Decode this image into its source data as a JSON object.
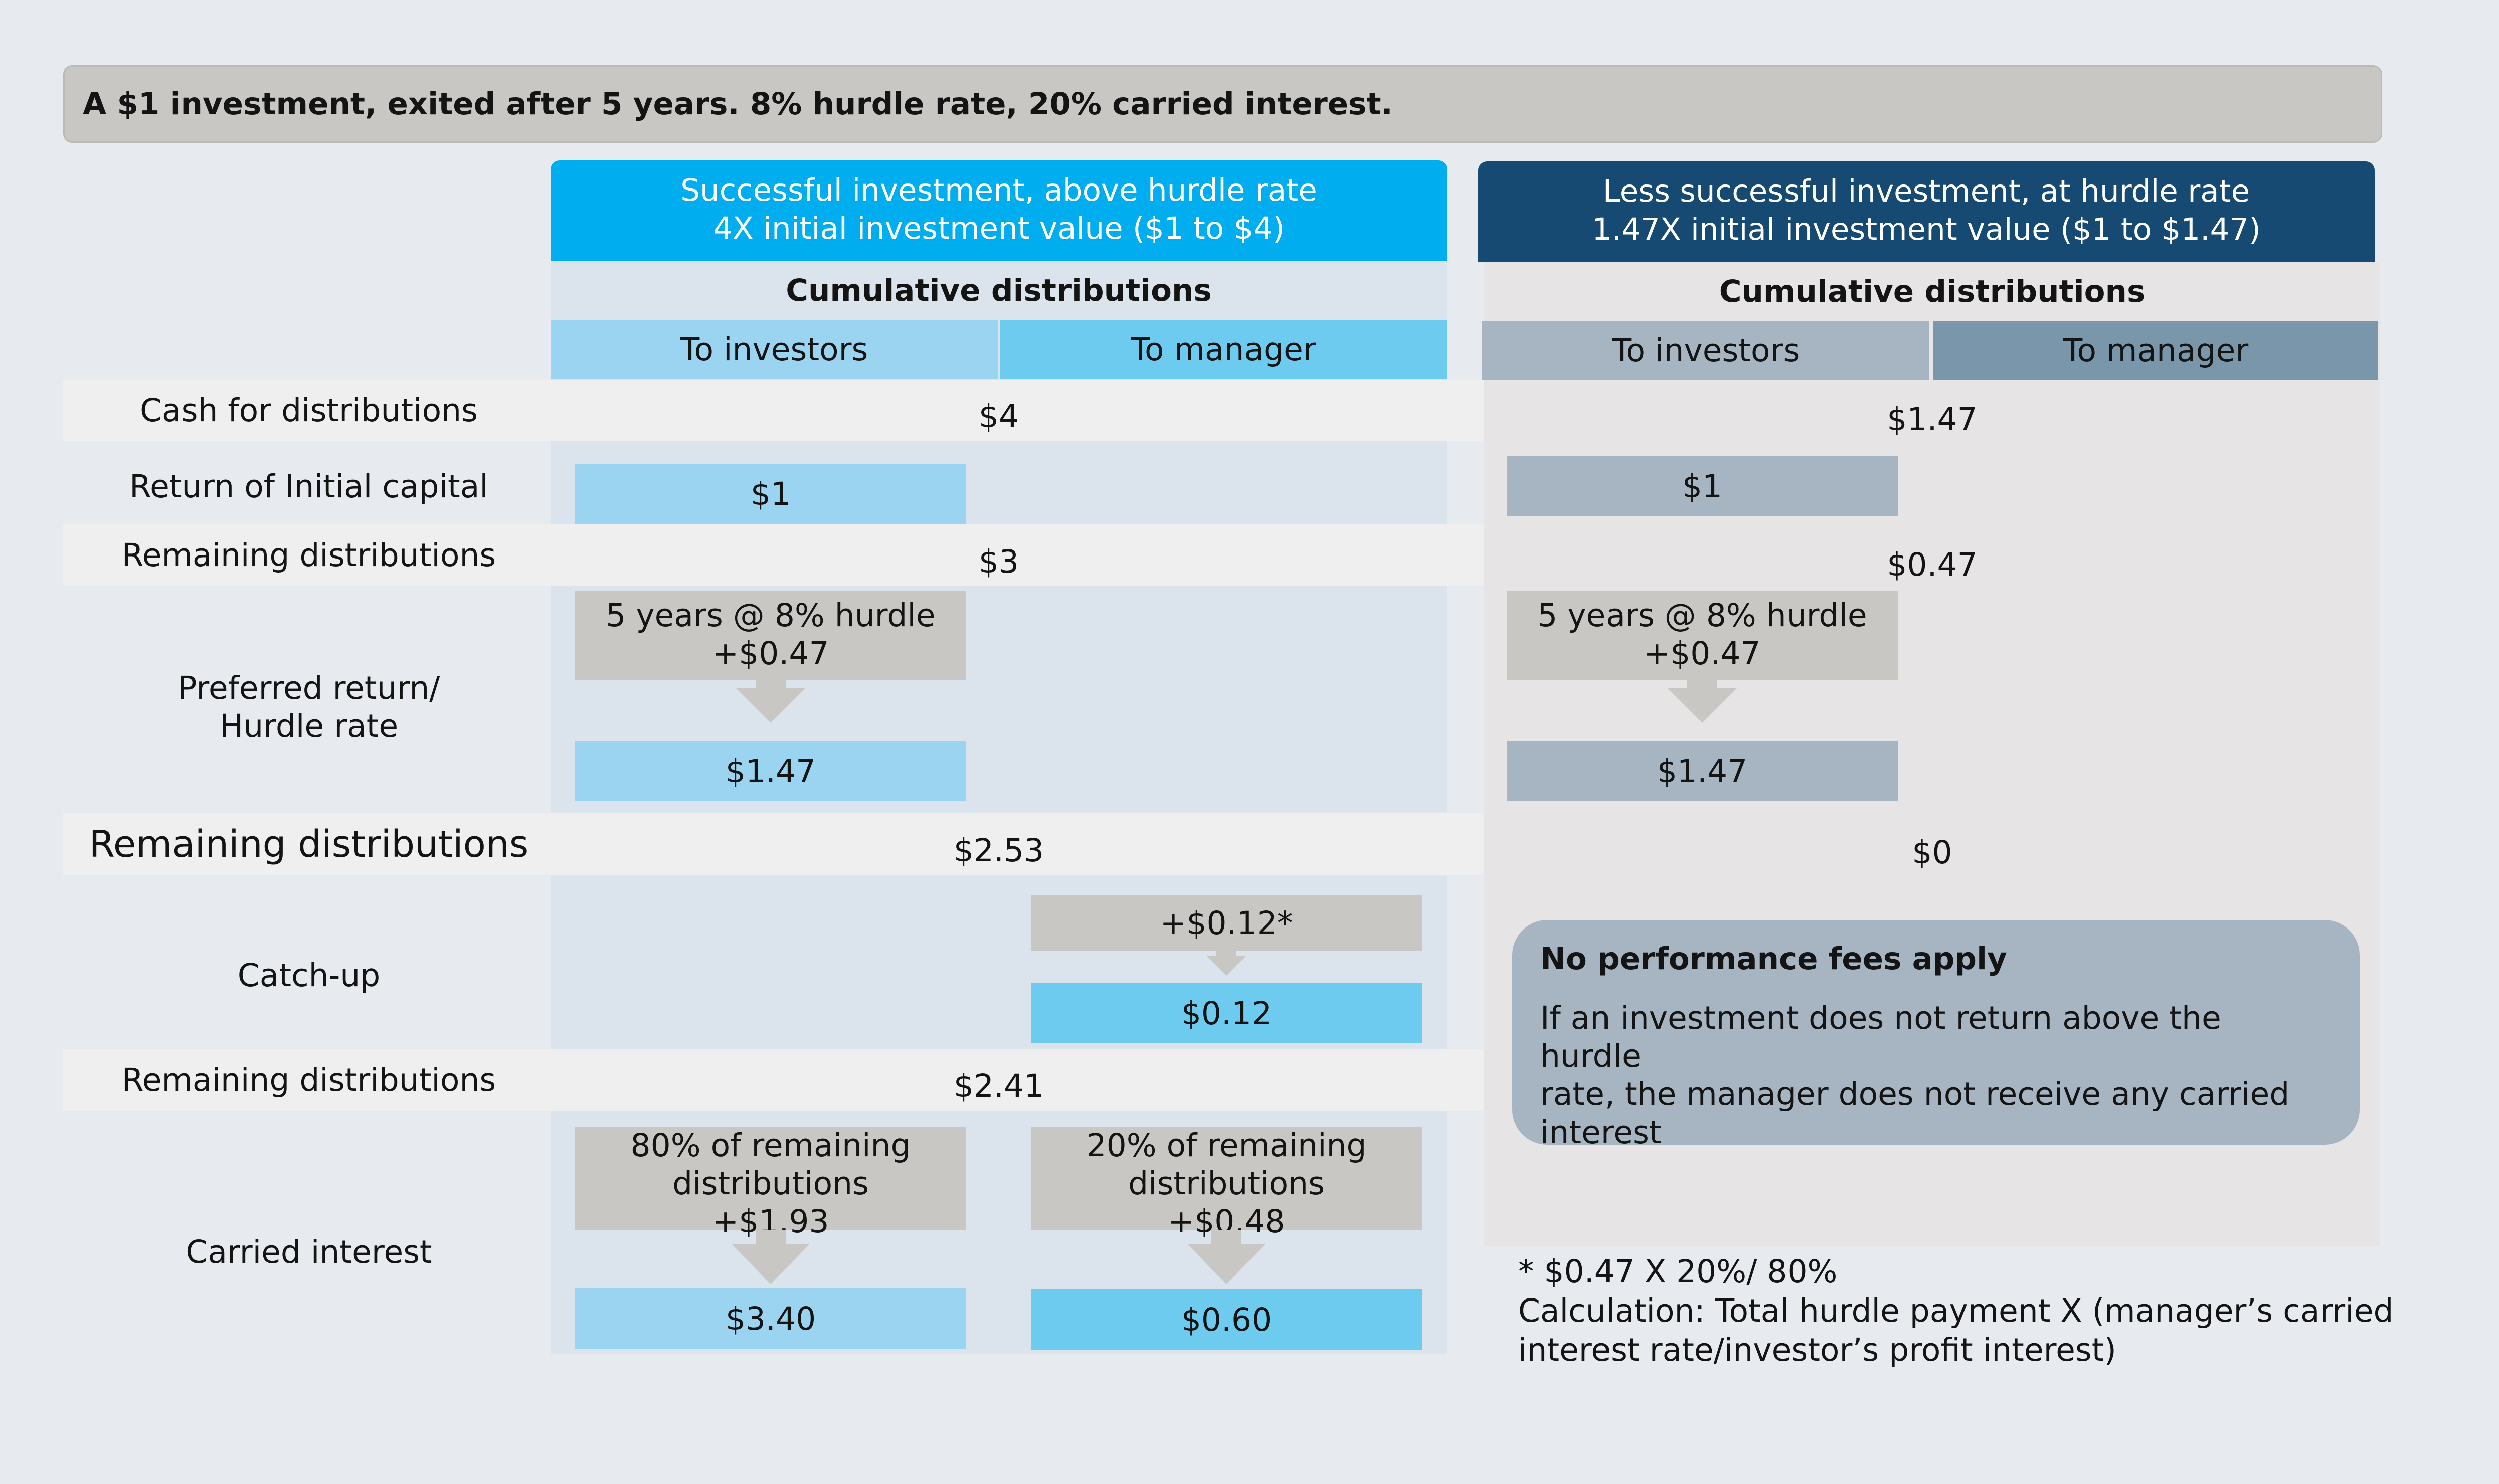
{
  "title": "A $1 investment, exited after 5 years. 8% hurdle rate, 20% carried interest.",
  "row_labels": {
    "cash": "Cash for distributions",
    "return_capital": "Return of Initial capital",
    "remaining1": "Remaining distributions",
    "preferred_line1": "Preferred return/",
    "preferred_line2": "Hurdle rate",
    "remaining2": "Remaining distributions",
    "catchup": "Catch-up",
    "remaining3": "Remaining distributions",
    "carried": "Carried interest"
  },
  "successful": {
    "header_line1": "Successful investment, above hurdle rate",
    "header_line2": "4X initial investment value ($1 to $4)",
    "cumulative": "Cumulative distributions",
    "col_investors": "To investors",
    "col_manager": "To manager",
    "cash": "$4",
    "return_capital": "$1",
    "remaining1": "$3",
    "hurdle_line1": "5 years @ 8% hurdle",
    "hurdle_line2": "+$0.47",
    "hurdle_result": "$1.47",
    "remaining2": "$2.53",
    "catchup_add": "+$0.12*",
    "catchup_result": "$0.12",
    "remaining3": "$2.41",
    "carry_inv_line1": "80% of remaining",
    "carry_inv_line2": "distributions",
    "carry_inv_line3": "+$1.93",
    "carry_inv_result": "$3.40",
    "carry_mgr_line1": "20% of remaining",
    "carry_mgr_line2": "distributions",
    "carry_mgr_line3": "+$0.48",
    "carry_mgr_result": "$0.60"
  },
  "less": {
    "header_line1": "Less successful investment, at hurdle rate",
    "header_line2": "1.47X initial investment value ($1 to $1.47)",
    "cumulative": "Cumulative distributions",
    "col_investors": "To investors",
    "col_manager": "To manager",
    "cash": "$1.47",
    "return_capital": "$1",
    "remaining1": "$0.47",
    "hurdle_line1": "5 years @ 8% hurdle",
    "hurdle_line2": "+$0.47",
    "hurdle_result": "$1.47",
    "remaining2": "$0",
    "note_title": "No performance fees apply",
    "note_line1": "If an investment does not return above the hurdle",
    "note_line2": "rate, the manager does not receive any carried",
    "note_line3": "interest"
  },
  "footnote": {
    "line1": "* $0.47 X 20%/ 80%",
    "line2": "Calculation: Total hurdle payment X (manager’s carried",
    "line3": "interest rate/investor’s profit interest)"
  },
  "colors": {
    "background": "#e7ebf0",
    "title_bar": "#c9c7c4",
    "success_header": "#00aeef",
    "success_panel": "#dbe4ec",
    "success_col_investors": "#9bd4f0",
    "success_col_manager": "#6ecbf0",
    "less_header": "#164a73",
    "less_panel": "#e6e4e4",
    "less_col_investors": "#a7b4c2",
    "less_col_manager": "#7a96ab",
    "grey_box": "#c9c7c4",
    "note_box": "#a7b4c2",
    "label_stripe": "#efefef"
  }
}
